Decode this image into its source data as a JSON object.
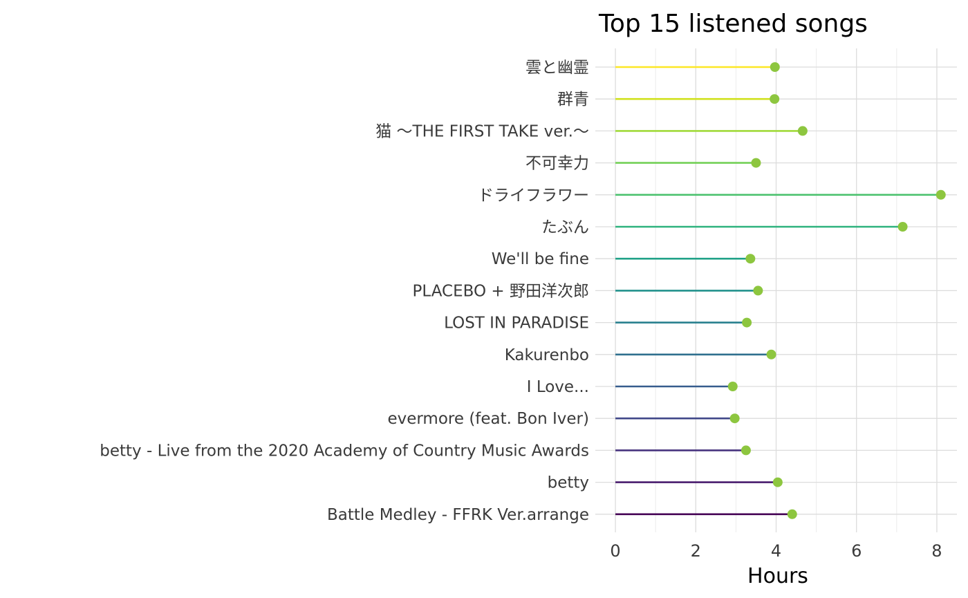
{
  "chart_data": {
    "type": "lollipop",
    "title": "Top 15 listened songs",
    "xlabel": "Hours",
    "ylabel": "",
    "xlim": [
      -0.5,
      8.5
    ],
    "x_ticks": [
      0,
      2,
      4,
      6,
      8
    ],
    "grid": true,
    "legend": "none",
    "point_color": "#8dc63f",
    "categories": [
      "雲と幽霊",
      "群青",
      "猫 〜THE FIRST TAKE ver.〜",
      "不可幸力",
      "ドライフラワー",
      "たぶん",
      "We'll be fine",
      "PLACEBO + 野田洋次郎",
      "LOST IN PARADISE",
      "Kakurenbo",
      "I Love...",
      "evermore (feat. Bon Iver)",
      "betty - Live from the 2020 Academy of Country Music Awards",
      "betty",
      "Battle Medley - FFRK Ver.arrange"
    ],
    "values": [
      3.97,
      3.96,
      4.66,
      3.5,
      8.1,
      7.15,
      3.36,
      3.55,
      3.27,
      3.88,
      2.92,
      2.97,
      3.25,
      4.04,
      4.4
    ],
    "line_colors": [
      "#fde725",
      "#d0e11c",
      "#a0da39",
      "#73d056",
      "#4ac16d",
      "#2db27d",
      "#1fa187",
      "#21918c",
      "#277f8e",
      "#2e6f8e",
      "#365c8d",
      "#3f4788",
      "#46327e",
      "#481b6d",
      "#440154"
    ]
  }
}
